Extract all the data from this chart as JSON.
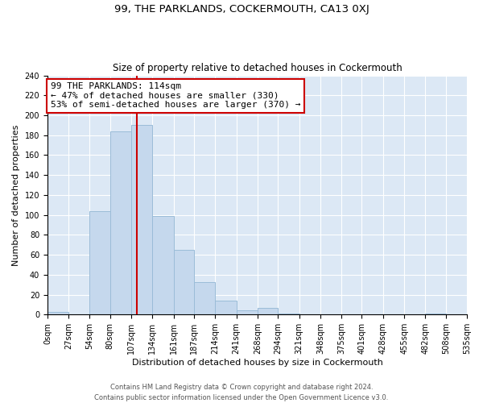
{
  "title": "99, THE PARKLANDS, COCKERMOUTH, CA13 0XJ",
  "subtitle": "Size of property relative to detached houses in Cockermouth",
  "xlabel": "Distribution of detached houses by size in Cockermouth",
  "ylabel": "Number of detached properties",
  "bin_edges": [
    0,
    27,
    54,
    80,
    107,
    134,
    161,
    187,
    214,
    241,
    268,
    294,
    321,
    348,
    375,
    401,
    428,
    455,
    482,
    508,
    535
  ],
  "bin_counts": [
    3,
    0,
    104,
    184,
    190,
    99,
    65,
    33,
    14,
    4,
    7,
    1,
    0,
    0,
    0,
    0,
    0,
    0,
    1,
    0
  ],
  "bar_color": "#c5d8ed",
  "bar_edgecolor": "#9bbcd8",
  "bar_linewidth": 0.7,
  "vline_x": 114,
  "vline_color": "#cc0000",
  "vline_linewidth": 1.5,
  "annotation_text": "99 THE PARKLANDS: 114sqm\n← 47% of detached houses are smaller (330)\n53% of semi-detached houses are larger (370) →",
  "annotation_box_edgecolor": "#cc0000",
  "annotation_box_facecolor": "white",
  "xlim_left": 0,
  "xlim_right": 535,
  "ylim_top": 240,
  "ylim_bottom": 0,
  "tick_labels": [
    "0sqm",
    "27sqm",
    "54sqm",
    "80sqm",
    "107sqm",
    "134sqm",
    "161sqm",
    "187sqm",
    "214sqm",
    "241sqm",
    "268sqm",
    "294sqm",
    "321sqm",
    "348sqm",
    "375sqm",
    "401sqm",
    "428sqm",
    "455sqm",
    "482sqm",
    "508sqm",
    "535sqm"
  ],
  "tick_positions": [
    0,
    27,
    54,
    80,
    107,
    134,
    161,
    187,
    214,
    241,
    268,
    294,
    321,
    348,
    375,
    401,
    428,
    455,
    482,
    508,
    535
  ],
  "yticks": [
    0,
    20,
    40,
    60,
    80,
    100,
    120,
    140,
    160,
    180,
    200,
    220,
    240
  ],
  "footer_line1": "Contains HM Land Registry data © Crown copyright and database right 2024.",
  "footer_line2": "Contains public sector information licensed under the Open Government Licence v3.0.",
  "background_color": "#ffffff",
  "ax_facecolor": "#dce8f5",
  "grid_color": "#ffffff",
  "title_fontsize": 9.5,
  "subtitle_fontsize": 8.5,
  "axis_label_fontsize": 8,
  "tick_fontsize": 7,
  "annotation_fontsize": 8,
  "footer_fontsize": 6
}
